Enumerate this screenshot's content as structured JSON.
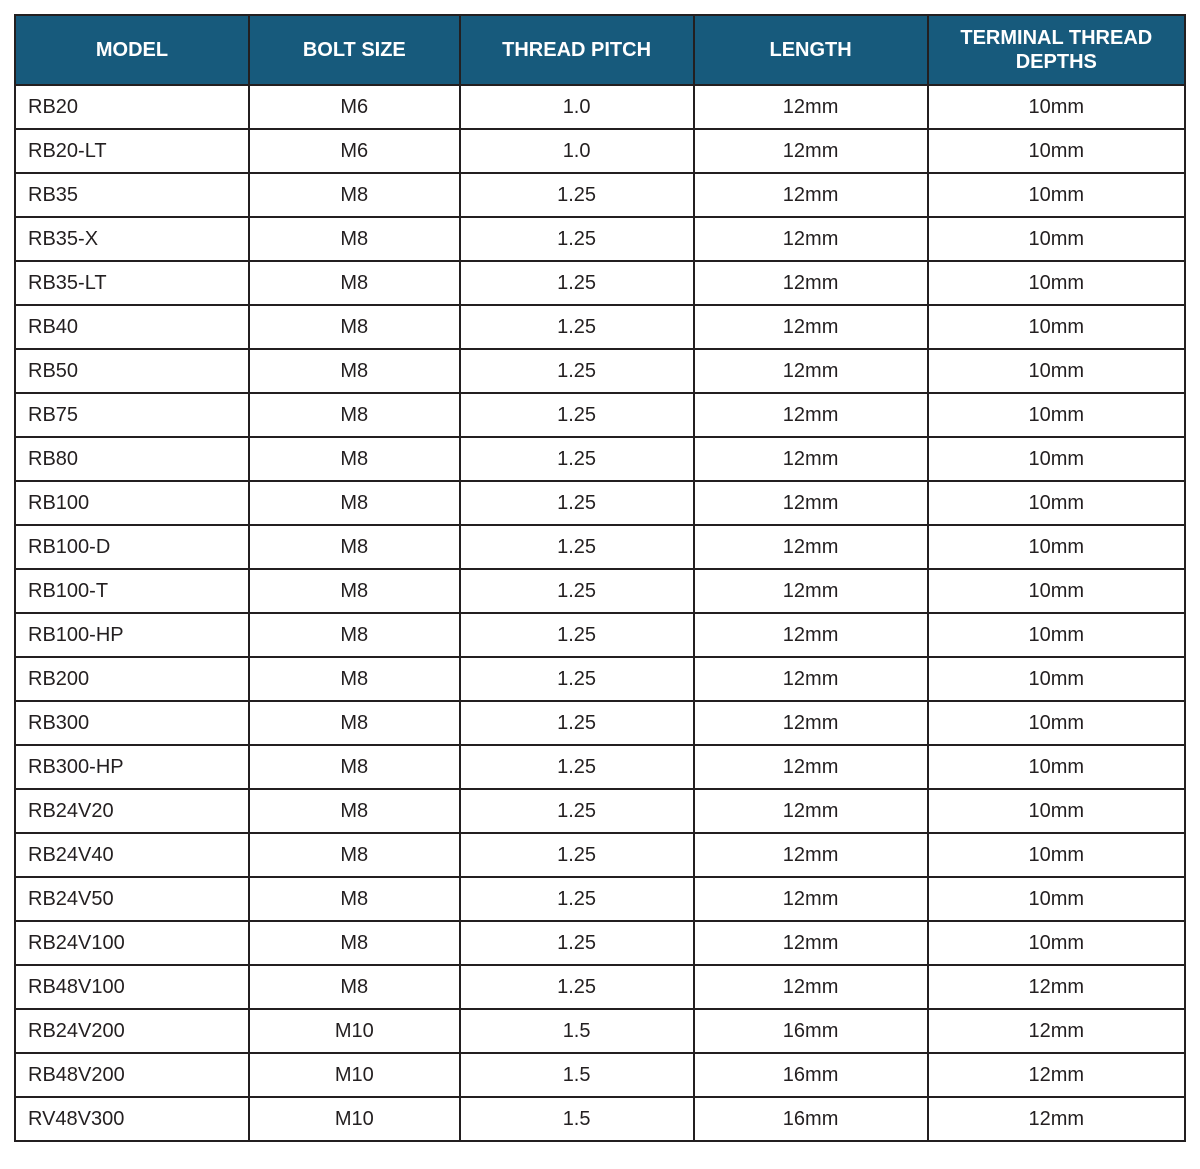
{
  "table": {
    "header_bg": "#175a7c",
    "header_fg": "#ffffff",
    "border_color": "#231f20",
    "cell_bg": "#ffffff",
    "cell_fg": "#231f20",
    "font_family": "Arial, Helvetica, sans-serif",
    "header_fontsize_pt": 15,
    "cell_fontsize_pt": 15,
    "columns": [
      {
        "key": "model",
        "label": "MODEL",
        "align": "left",
        "width_pct": 20
      },
      {
        "key": "bolt",
        "label": "BOLT SIZE",
        "align": "center",
        "width_pct": 18
      },
      {
        "key": "pitch",
        "label": "THREAD PITCH",
        "align": "center",
        "width_pct": 20
      },
      {
        "key": "length",
        "label": "LENGTH",
        "align": "center",
        "width_pct": 20
      },
      {
        "key": "depth",
        "label": "TERMINAL THREAD DEPTHS",
        "align": "center",
        "width_pct": 22
      }
    ],
    "rows": [
      {
        "model": "RB20",
        "bolt": "M6",
        "pitch": "1.0",
        "length": "12mm",
        "depth": "10mm"
      },
      {
        "model": "RB20-LT",
        "bolt": "M6",
        "pitch": "1.0",
        "length": "12mm",
        "depth": "10mm"
      },
      {
        "model": "RB35",
        "bolt": "M8",
        "pitch": "1.25",
        "length": "12mm",
        "depth": "10mm"
      },
      {
        "model": "RB35-X",
        "bolt": "M8",
        "pitch": "1.25",
        "length": "12mm",
        "depth": "10mm"
      },
      {
        "model": "RB35-LT",
        "bolt": "M8",
        "pitch": "1.25",
        "length": "12mm",
        "depth": "10mm"
      },
      {
        "model": "RB40",
        "bolt": "M8",
        "pitch": "1.25",
        "length": "12mm",
        "depth": "10mm"
      },
      {
        "model": "RB50",
        "bolt": "M8",
        "pitch": "1.25",
        "length": "12mm",
        "depth": "10mm"
      },
      {
        "model": "RB75",
        "bolt": "M8",
        "pitch": "1.25",
        "length": "12mm",
        "depth": "10mm"
      },
      {
        "model": "RB80",
        "bolt": "M8",
        "pitch": "1.25",
        "length": "12mm",
        "depth": "10mm"
      },
      {
        "model": "RB100",
        "bolt": "M8",
        "pitch": "1.25",
        "length": "12mm",
        "depth": "10mm"
      },
      {
        "model": "RB100-D",
        "bolt": "M8",
        "pitch": "1.25",
        "length": "12mm",
        "depth": "10mm"
      },
      {
        "model": "RB100-T",
        "bolt": "M8",
        "pitch": "1.25",
        "length": "12mm",
        "depth": "10mm"
      },
      {
        "model": "RB100-HP",
        "bolt": "M8",
        "pitch": "1.25",
        "length": "12mm",
        "depth": "10mm"
      },
      {
        "model": "RB200",
        "bolt": "M8",
        "pitch": "1.25",
        "length": "12mm",
        "depth": "10mm"
      },
      {
        "model": "RB300",
        "bolt": "M8",
        "pitch": "1.25",
        "length": "12mm",
        "depth": "10mm"
      },
      {
        "model": "RB300-HP",
        "bolt": "M8",
        "pitch": "1.25",
        "length": "12mm",
        "depth": "10mm"
      },
      {
        "model": "RB24V20",
        "bolt": "M8",
        "pitch": "1.25",
        "length": "12mm",
        "depth": "10mm"
      },
      {
        "model": "RB24V40",
        "bolt": "M8",
        "pitch": "1.25",
        "length": "12mm",
        "depth": "10mm"
      },
      {
        "model": "RB24V50",
        "bolt": "M8",
        "pitch": "1.25",
        "length": "12mm",
        "depth": "10mm"
      },
      {
        "model": "RB24V100",
        "bolt": "M8",
        "pitch": "1.25",
        "length": "12mm",
        "depth": "10mm"
      },
      {
        "model": "RB48V100",
        "bolt": "M8",
        "pitch": "1.25",
        "length": "12mm",
        "depth": "12mm"
      },
      {
        "model": "RB24V200",
        "bolt": "M10",
        "pitch": "1.5",
        "length": "16mm",
        "depth": "12mm"
      },
      {
        "model": "RB48V200",
        "bolt": "M10",
        "pitch": "1.5",
        "length": "16mm",
        "depth": "12mm"
      },
      {
        "model": "RV48V300",
        "bolt": "M10",
        "pitch": "1.5",
        "length": "16mm",
        "depth": "12mm"
      }
    ]
  }
}
